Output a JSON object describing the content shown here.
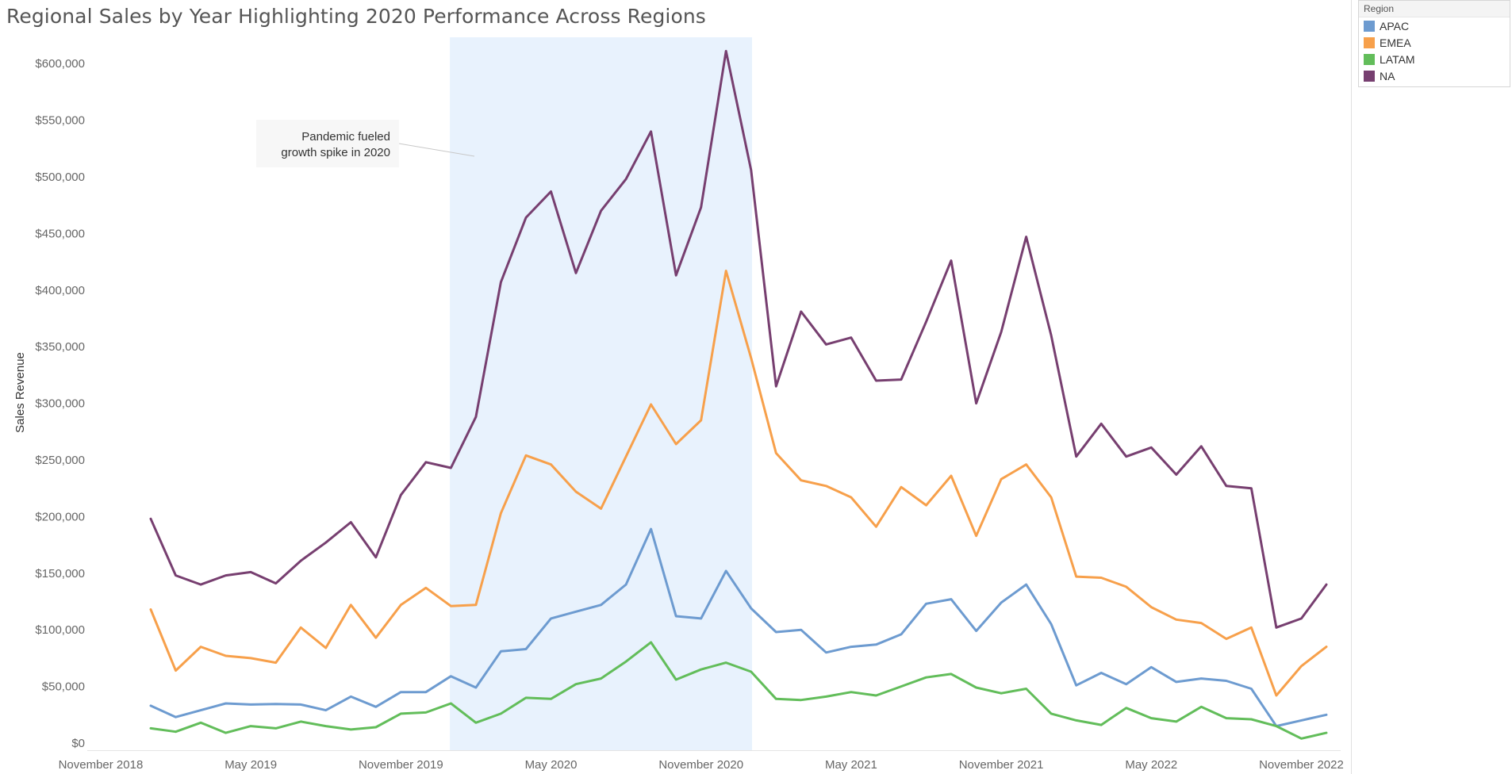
{
  "title": "Regional Sales by Year Highlighting 2020 Performance Across Regions",
  "legend": {
    "header": "Region",
    "items": [
      {
        "label": "APAC",
        "color": "#6d9bd0"
      },
      {
        "label": "EMEA",
        "color": "#f7a04b"
      },
      {
        "label": "LATAM",
        "color": "#62bd5a"
      },
      {
        "label": "NA",
        "color": "#773f70"
      }
    ]
  },
  "annotation": {
    "lines": [
      "Pandemic fueled",
      "growth spike in 2020"
    ]
  },
  "chart_data": {
    "type": "line",
    "title": "Regional Sales by Year Highlighting 2020 Performance Across Regions",
    "ylabel": "Sales Revenue",
    "xlabel": "",
    "ylim": [
      0,
      640000
    ],
    "yticks": [
      0,
      50000,
      100000,
      150000,
      200000,
      250000,
      300000,
      350000,
      400000,
      450000,
      500000,
      550000,
      600000
    ],
    "ytick_labels": [
      "$0",
      "$50,000",
      "$100,000",
      "$150,000",
      "$200,000",
      "$250,000",
      "$300,000",
      "$350,000",
      "$400,000",
      "$450,000",
      "$500,000",
      "$550,000",
      "$600,000"
    ],
    "x_start": "2019-01",
    "x_end": "2022-12",
    "xticks": [
      "2018-11",
      "2019-05",
      "2019-11",
      "2020-05",
      "2020-11",
      "2021-05",
      "2021-11",
      "2022-05",
      "2022-11"
    ],
    "xtick_labels": [
      "November 2018",
      "May 2019",
      "November 2019",
      "May 2020",
      "November 2020",
      "May 2021",
      "November 2021",
      "May 2022",
      "November 2022"
    ],
    "highlight": {
      "from": "2020-01",
      "to": "2021-01"
    },
    "grid": false,
    "legend_position": "top-right",
    "series": [
      {
        "name": "APAC",
        "color": "#6d9bd0",
        "values": [
          33000,
          23000,
          29000,
          35000,
          34000,
          34500,
          34000,
          29000,
          41000,
          32000,
          45000,
          45000,
          59000,
          49000,
          81000,
          83000,
          110000,
          116000,
          122000,
          140000,
          189000,
          112000,
          110000,
          152000,
          119000,
          98000,
          100000,
          80000,
          85000,
          87000,
          96000,
          123000,
          127000,
          99000,
          124000,
          140000,
          105000,
          51000,
          62000,
          52000,
          67000,
          54000,
          57000,
          55000,
          48000,
          15000,
          20000,
          25000
        ]
      },
      {
        "name": "EMEA",
        "color": "#f7a04b",
        "values": [
          118000,
          64000,
          85000,
          77000,
          75000,
          71000,
          102000,
          84000,
          122000,
          93000,
          122000,
          137000,
          121000,
          122000,
          203000,
          254000,
          246000,
          222000,
          207000,
          253000,
          299000,
          264000,
          285000,
          417000,
          340000,
          256000,
          232000,
          227000,
          217000,
          191000,
          226000,
          210000,
          236000,
          183000,
          233000,
          246000,
          217000,
          147000,
          146000,
          138000,
          120000,
          109000,
          106000,
          92000,
          102000,
          42000,
          68000,
          85000
        ]
      },
      {
        "name": "LATAM",
        "color": "#62bd5a",
        "values": [
          13000,
          10000,
          18000,
          9000,
          15000,
          13000,
          19000,
          15000,
          12000,
          14000,
          26000,
          27000,
          35000,
          18000,
          26000,
          40000,
          39000,
          52000,
          57000,
          72000,
          89000,
          56000,
          65000,
          71000,
          63000,
          39000,
          38000,
          41000,
          45000,
          42000,
          50000,
          58000,
          61000,
          49000,
          44000,
          48000,
          26000,
          20000,
          16000,
          31000,
          22000,
          19000,
          32000,
          22000,
          21000,
          15000,
          4000,
          9000
        ]
      },
      {
        "name": "NA",
        "color": "#773f70",
        "values": [
          198000,
          148000,
          140000,
          148000,
          151000,
          141000,
          161000,
          177000,
          195000,
          164000,
          219000,
          248000,
          243000,
          288000,
          407000,
          464000,
          487000,
          415000,
          470000,
          498000,
          540000,
          413000,
          473000,
          611000,
          506000,
          315000,
          381000,
          352000,
          358000,
          320000,
          321000,
          372000,
          426000,
          300000,
          363000,
          447000,
          360000,
          253000,
          282000,
          253000,
          261000,
          237000,
          262000,
          227000,
          225000,
          102000,
          110000,
          140000
        ]
      }
    ]
  }
}
